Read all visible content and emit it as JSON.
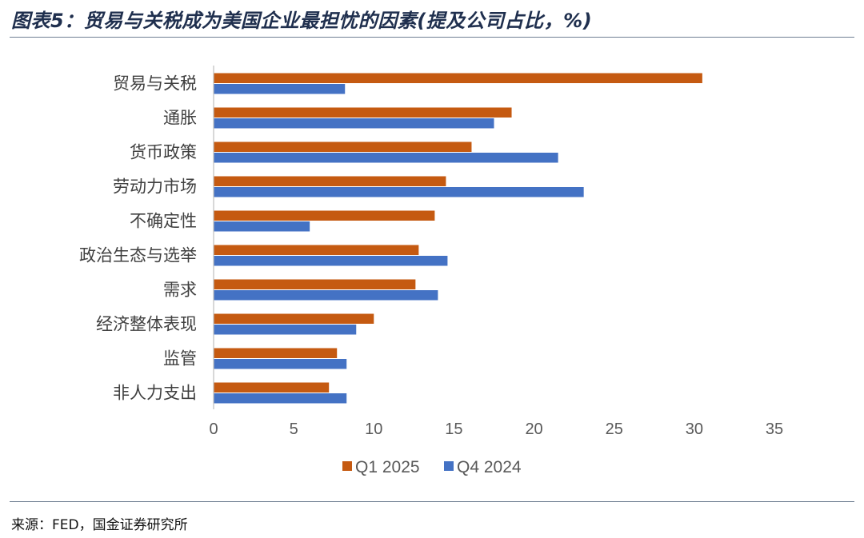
{
  "header": {
    "title": "图表5：贸易与关税成为美国企业最担忧的因素(提及公司占比，%)"
  },
  "footer": {
    "source": "来源：FED，国金证券研究所"
  },
  "colors": {
    "q1_2025": "#c55a11",
    "q4_2024": "#4472c4",
    "axis": "#bfbfbf",
    "rule": "#6f7f92"
  },
  "chart_data": {
    "type": "bar",
    "orientation": "horizontal",
    "title": "贸易与关税成为美国企业最担忧的因素(提及公司占比，%)",
    "xlabel": "",
    "ylabel": "",
    "xlim": [
      0,
      35
    ],
    "xticks": [
      0,
      5,
      10,
      15,
      20,
      25,
      30,
      35
    ],
    "grid": false,
    "legend_position": "bottom",
    "categories": [
      "贸易与关税",
      "通胀",
      "货币政策",
      "劳动力市场",
      "不确定性",
      "政治生态与选举",
      "需求",
      "经济整体表现",
      "监管",
      "非人力支出"
    ],
    "series": [
      {
        "name": "Q1 2025",
        "color": "#c55a11",
        "values": [
          30.5,
          18.6,
          16.1,
          14.5,
          13.8,
          12.8,
          12.6,
          10.0,
          7.7,
          7.2
        ]
      },
      {
        "name": "Q4 2024",
        "color": "#4472c4",
        "values": [
          8.2,
          17.5,
          21.5,
          23.1,
          6.0,
          14.6,
          14.0,
          8.9,
          8.3,
          8.3
        ]
      }
    ]
  }
}
